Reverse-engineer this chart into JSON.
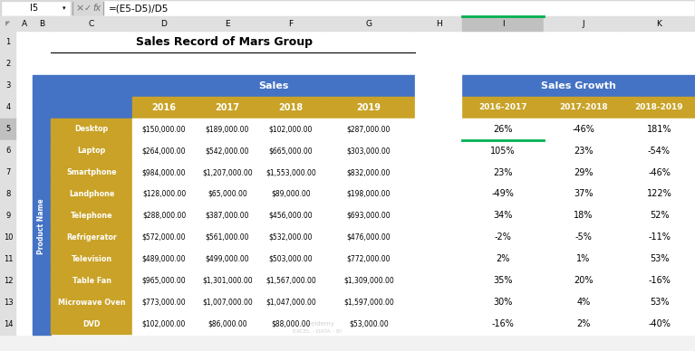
{
  "title": "Sales Record of Mars Group",
  "formula_bar_text": "=(E5-D5)/D5",
  "cell_ref": "I5",
  "blue_hdr": "#4472C4",
  "gold_hdr": "#C9A227",
  "white": "#FFFFFF",
  "black": "#000000",
  "excel_bg": "#F2F2F2",
  "col_header_bg": "#E0E0E0",
  "col_header_highlight": "#C0C0C0",
  "grid_color": "#BFBFBF",
  "red_border": "#FF0000",
  "green_line": "#00B050",
  "dark_border": "#2F528F",
  "products": [
    "Desktop",
    "Laptop",
    "Smartphone",
    "Landphone",
    "Telephone",
    "Refrigerator",
    "Television",
    "Table Fan",
    "Microwave Oven",
    "DVD"
  ],
  "sales_years": [
    "2016",
    "2017",
    "2018",
    "2019"
  ],
  "sales_data": [
    [
      "$150,000.00",
      "$189,000.00",
      "$102,000.00",
      "$287,000.00"
    ],
    [
      "$264,000.00",
      "$542,000.00",
      "$665,000.00",
      "$303,000.00"
    ],
    [
      "$984,000.00",
      "$1,207,000.00",
      "$1,553,000.00",
      "$832,000.00"
    ],
    [
      "$128,000.00",
      "$65,000.00",
      "$89,000.00",
      "$198,000.00"
    ],
    [
      "$288,000.00",
      "$387,000.00",
      "$456,000.00",
      "$693,000.00"
    ],
    [
      "$572,000.00",
      "$561,000.00",
      "$532,000.00",
      "$476,000.00"
    ],
    [
      "$489,000.00",
      "$499,000.00",
      "$503,000.00",
      "$772,000.00"
    ],
    [
      "$965,000.00",
      "$1,301,000.00",
      "$1,567,000.00",
      "$1,309,000.00"
    ],
    [
      "$773,000.00",
      "$1,007,000.00",
      "$1,047,000.00",
      "$1,597,000.00"
    ],
    [
      "$102,000.00",
      "$86,000.00",
      "$88,000.00",
      "$53,000.00"
    ]
  ],
  "growth_years": [
    "2016-2017",
    "2017-2018",
    "2018-2019"
  ],
  "growth_data": [
    [
      "26%",
      "-46%",
      "181%"
    ],
    [
      "105%",
      "23%",
      "-54%"
    ],
    [
      "23%",
      "29%",
      "-46%"
    ],
    [
      "-49%",
      "37%",
      "122%"
    ],
    [
      "34%",
      "18%",
      "52%"
    ],
    [
      "-2%",
      "-5%",
      "-11%"
    ],
    [
      "2%",
      "1%",
      "53%"
    ],
    [
      "35%",
      "20%",
      "-16%"
    ],
    [
      "30%",
      "4%",
      "53%"
    ],
    [
      "-16%",
      "2%",
      "-40%"
    ]
  ],
  "col_letters": [
    "A",
    "B",
    "C",
    "D",
    "E",
    "F",
    "G",
    "H",
    "I",
    "J",
    "K"
  ],
  "row_numbers": [
    "1",
    "2",
    "3",
    "4",
    "5",
    "6",
    "7",
    "8",
    "9",
    "10",
    "11",
    "12",
    "13",
    "14"
  ],
  "watermark_line1": "exceldemy",
  "watermark_line2": "EXCEL - DATA - BI",
  "formula_bar_bg": "#DCDCDC",
  "formula_bar_top_bg": "#F0F0F0"
}
